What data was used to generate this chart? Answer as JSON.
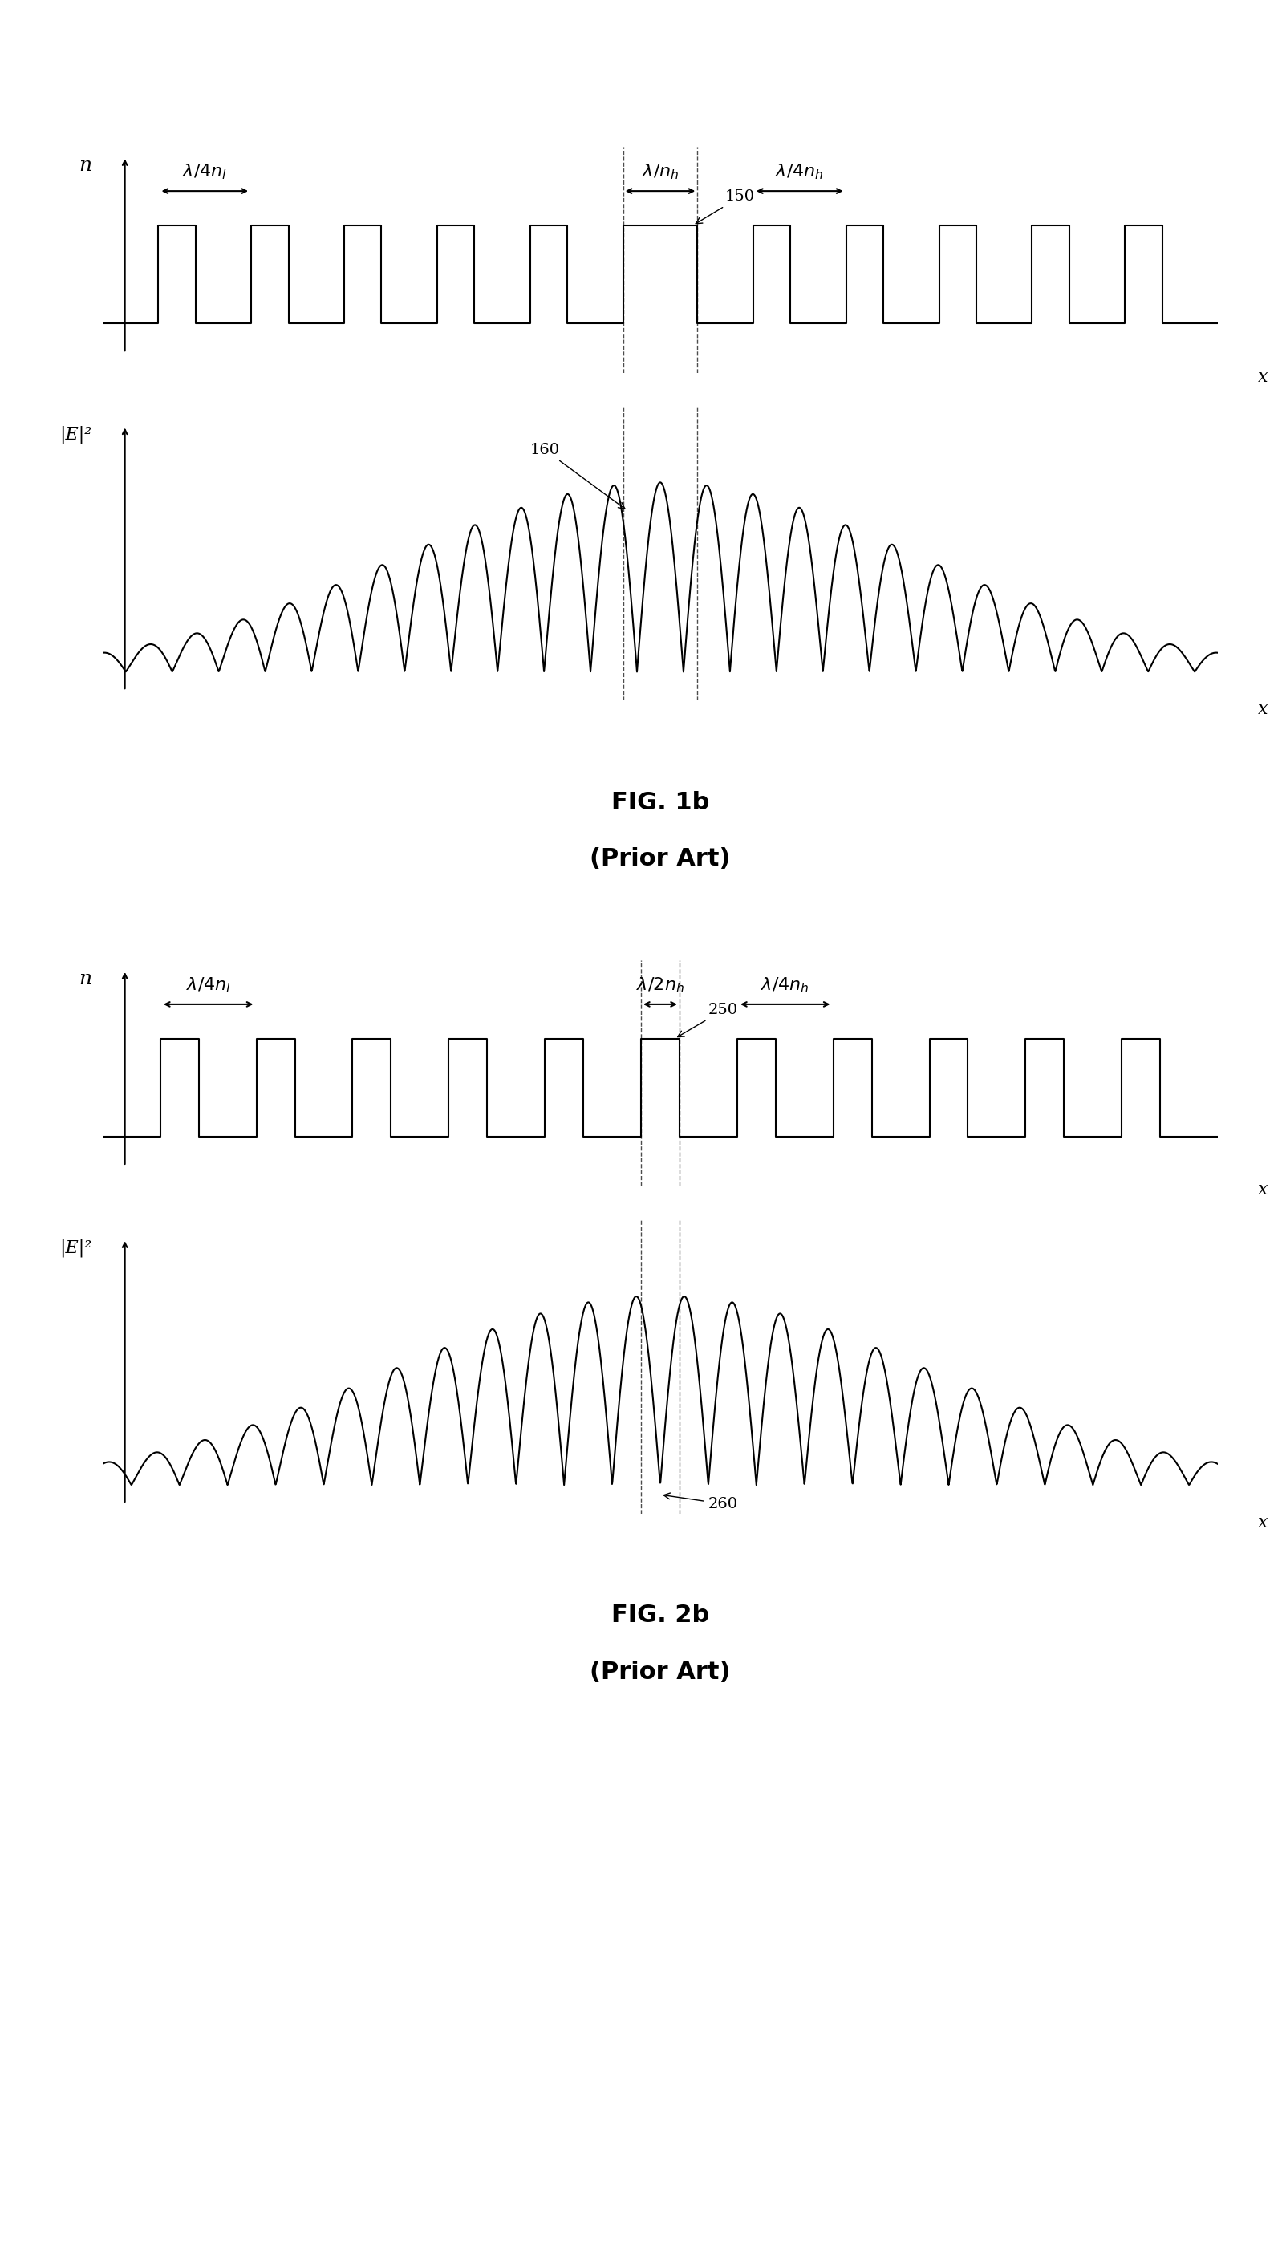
{
  "fig_title1": "FIG. 1b",
  "fig_subtitle1": "(Prior Art)",
  "fig_title2": "FIG. 2b",
  "fig_subtitle2": "(Prior Art)",
  "bg_color": "#ffffff",
  "line_color": "#000000",
  "label_n1": "n",
  "label_E1": "|E|²",
  "label_x": "x",
  "annotation1_top": "\\u03bb/4n\\u2097",
  "annotation1_mid": "\\u03bb/n\\u2095",
  "annotation1_right": "\\u03bb/4n\\u2095",
  "annotation2_top": "\\u03bb/4n\\u2097",
  "annotation2_mid": "\\u03bb/2n\\u2095",
  "annotation2_right": "\\u03bb/4n\\u2095",
  "label_150": "150",
  "label_160": "160",
  "label_250": "250",
  "label_260": "260"
}
